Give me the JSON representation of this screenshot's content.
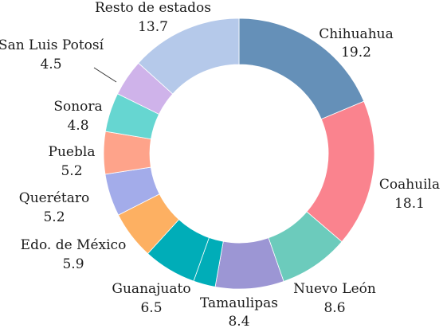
{
  "chart_data": {
    "type": "pie",
    "donut": true,
    "title": "",
    "legend": "none",
    "start_angle_deg": 0,
    "direction": "clockwise",
    "slices": [
      {
        "name": "Chihuahua",
        "value": 19.2,
        "value_label": "19.2",
        "color": "#6590b8"
      },
      {
        "name": "Coahuila",
        "value": 18.1,
        "value_label": "18.1",
        "color": "#fa838e"
      },
      {
        "name": "Nuevo León",
        "value": 8.6,
        "value_label": "8.6",
        "color": "#6ccbbc"
      },
      {
        "name": "Tamaulipas",
        "value": 8.4,
        "value_label": "8.4",
        "color": "#9c96d4"
      },
      {
        "name": "",
        "value": 2.7,
        "value_label": "",
        "color": "#00adb8"
      },
      {
        "name": "Guanajuato",
        "value": 6.5,
        "value_label": "6.5",
        "color": "#00adb8"
      },
      {
        "name": "Edo. de México",
        "value": 5.9,
        "value_label": "5.9",
        "color": "#fdb062"
      },
      {
        "name": "Querétaro",
        "value": 5.2,
        "value_label": "5.2",
        "color": "#a3acea"
      },
      {
        "name": "Puebla",
        "value": 5.2,
        "value_label": "5.2",
        "color": "#fea38a"
      },
      {
        "name": "Sonora",
        "value": 4.8,
        "value_label": "4.8",
        "color": "#66d6d1"
      },
      {
        "name": "San Luis Potosí",
        "value": 4.5,
        "value_label": "4.5",
        "color": "#cfb3ea"
      },
      {
        "name": "Resto de estados",
        "value": 13.7,
        "value_label": "13.7",
        "color": "#b5c9ea"
      }
    ]
  }
}
